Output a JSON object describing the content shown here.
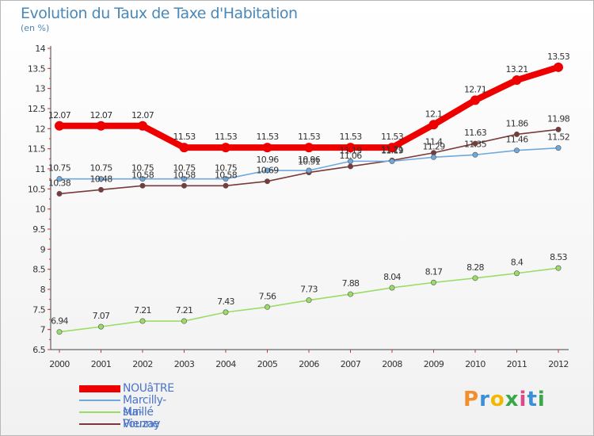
{
  "title": "Evolution du Taux de Taxe d'Habitation",
  "subtitle": "(en %)",
  "logo": {
    "text": "Proxiti",
    "colors": [
      "#f28e2b",
      "#3b8fd8",
      "#f2b800",
      "#3aa84a",
      "#d94a8a",
      "#3b8fd8",
      "#3aa84a"
    ]
  },
  "chart_data": {
    "type": "line",
    "x": [
      "2000",
      "2001",
      "2002",
      "2003",
      "2004",
      "2005",
      "2006",
      "2007",
      "2008",
      "2009",
      "2010",
      "2011",
      "2012"
    ],
    "ylim": [
      6.5,
      14
    ],
    "yticks": [
      "6.5",
      "7",
      "7.5",
      "8",
      "8.5",
      "9",
      "9.5",
      "10",
      "10.5",
      "11",
      "11.5",
      "12",
      "12.5",
      "13",
      "13.5",
      "14"
    ],
    "grid": false,
    "legend_position": "bottom-left",
    "series": [
      {
        "name": "NOUâTRE",
        "color": "#ee0000",
        "values": [
          12.07,
          12.07,
          12.07,
          11.53,
          11.53,
          11.53,
          11.53,
          11.53,
          11.53,
          12.1,
          12.71,
          13.21,
          13.53
        ],
        "labels": [
          "12.07",
          "12.07",
          "12.07",
          "11.53",
          "11.53",
          "11.53",
          "11.53",
          "11.53",
          "11.53",
          "12.1",
          "12.71",
          "13.21",
          "13.53"
        ]
      },
      {
        "name": "Marcilly-sur-Vienne",
        "color": "#6fa8dc",
        "values": [
          10.75,
          10.75,
          10.75,
          10.75,
          10.75,
          10.96,
          10.96,
          11.19,
          11.19,
          11.29,
          11.35,
          11.46,
          11.52
        ],
        "labels": [
          "10.75",
          "10.75",
          "10.75",
          "10.75",
          "10.75",
          "10.96",
          "10.96",
          "11.19",
          "11.19",
          "11.29",
          "11.35",
          "11.46",
          "11.52"
        ]
      },
      {
        "name": "Maillé",
        "color": "#99dd66",
        "values": [
          6.94,
          7.07,
          7.21,
          7.21,
          7.43,
          7.56,
          7.73,
          7.88,
          8.04,
          8.17,
          8.28,
          8.4,
          8.53
        ],
        "labels": [
          "6.94",
          "7.07",
          "7.21",
          "7.21",
          "7.43",
          "7.56",
          "7.73",
          "7.88",
          "8.04",
          "8.17",
          "8.28",
          "8.4",
          "8.53"
        ]
      },
      {
        "name": "Pouzay",
        "color": "#7a3a3a",
        "values": [
          10.38,
          10.48,
          10.58,
          10.58,
          10.58,
          10.69,
          10.91,
          11.06,
          11.21,
          11.4,
          11.63,
          11.86,
          11.98
        ],
        "labels": [
          "10.38",
          "10.48",
          "10.58",
          "10.58",
          "10.58",
          "10.69",
          "10.91",
          "11.06",
          "11.21",
          "11.4",
          "11.63",
          "11.86",
          "11.98"
        ]
      }
    ]
  }
}
